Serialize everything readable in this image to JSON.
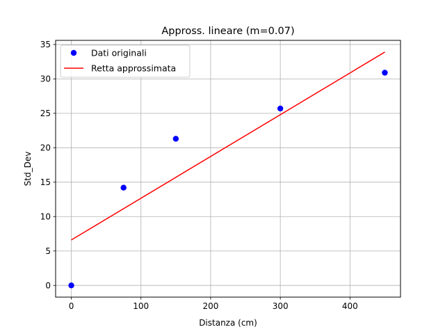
{
  "chart_data": {
    "type": "scatter",
    "title": "Appross. lineare (m=0.07)",
    "xlabel": "Distanza (cm)",
    "ylabel": "Std_Dev",
    "xlim": [
      -22.5,
      472.5
    ],
    "ylim": [
      -1.7,
      35.6
    ],
    "xticks": [
      0,
      100,
      200,
      300,
      400
    ],
    "yticks": [
      0,
      5,
      10,
      15,
      20,
      25,
      30,
      35
    ],
    "grid": true,
    "legend_position": "top-left",
    "series": [
      {
        "name": "Dati originali",
        "kind": "scatter",
        "color": "#0000ff",
        "x": [
          0,
          75,
          150,
          300,
          450
        ],
        "y": [
          0.0,
          14.2,
          21.3,
          25.7,
          30.9
        ]
      },
      {
        "name": "Retta approssimata",
        "kind": "line",
        "color": "#ff0000",
        "x": [
          0,
          450
        ],
        "y": [
          6.6,
          33.9
        ]
      }
    ]
  }
}
